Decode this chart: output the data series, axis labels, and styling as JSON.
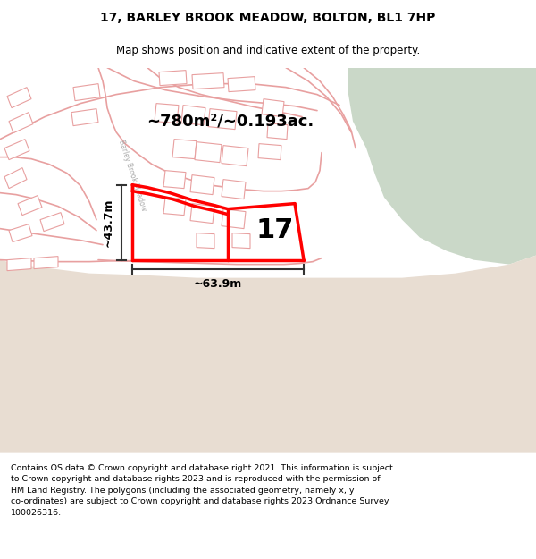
{
  "title": "17, BARLEY BROOK MEADOW, BOLTON, BL1 7HP",
  "subtitle": "Map shows position and indicative extent of the property.",
  "footer": "Contains OS data © Crown copyright and database right 2021. This information is subject to Crown copyright and database rights 2023 and is reproduced with the permission of HM Land Registry. The polygons (including the associated geometry, namely x, y co-ordinates) are subject to Crown copyright and database rights 2023 Ordnance Survey 100026316.",
  "area_label": "~780m²/~0.193ac.",
  "width_label": "~63.9m",
  "height_label": "~43.7m",
  "property_number": "17",
  "map_bg": "#f5f2ee",
  "green_color": "#cad8c8",
  "beach_color": "#e8ddd2",
  "building_fill": "#e8e4e0",
  "road_line": "#e8a0a0",
  "highlight": "#ff0000",
  "street_label": "Barley Brook Meadow",
  "white": "#ffffff",
  "dim_line_color": "#333333"
}
